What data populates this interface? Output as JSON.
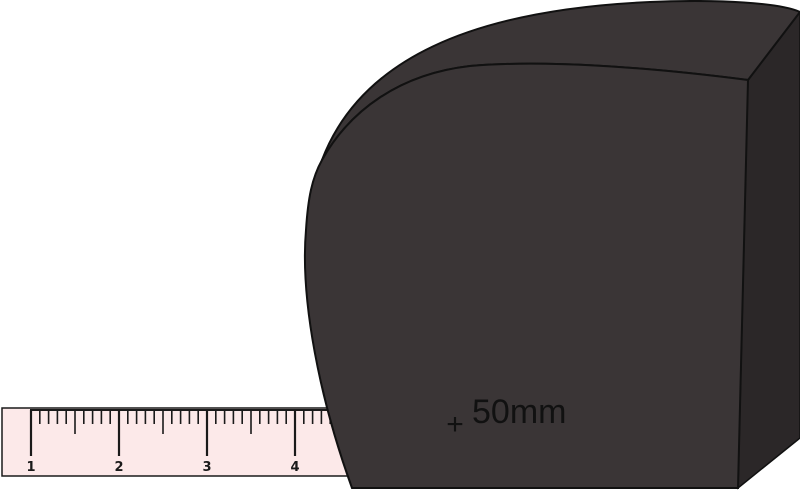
{
  "tape": {
    "numbers": [
      "1",
      "2",
      "3",
      "4"
    ],
    "color": "#fce9e9"
  },
  "case": {
    "label": "50mm",
    "marker": "+",
    "color": "#3a3536",
    "side_color": "#2b2728"
  }
}
